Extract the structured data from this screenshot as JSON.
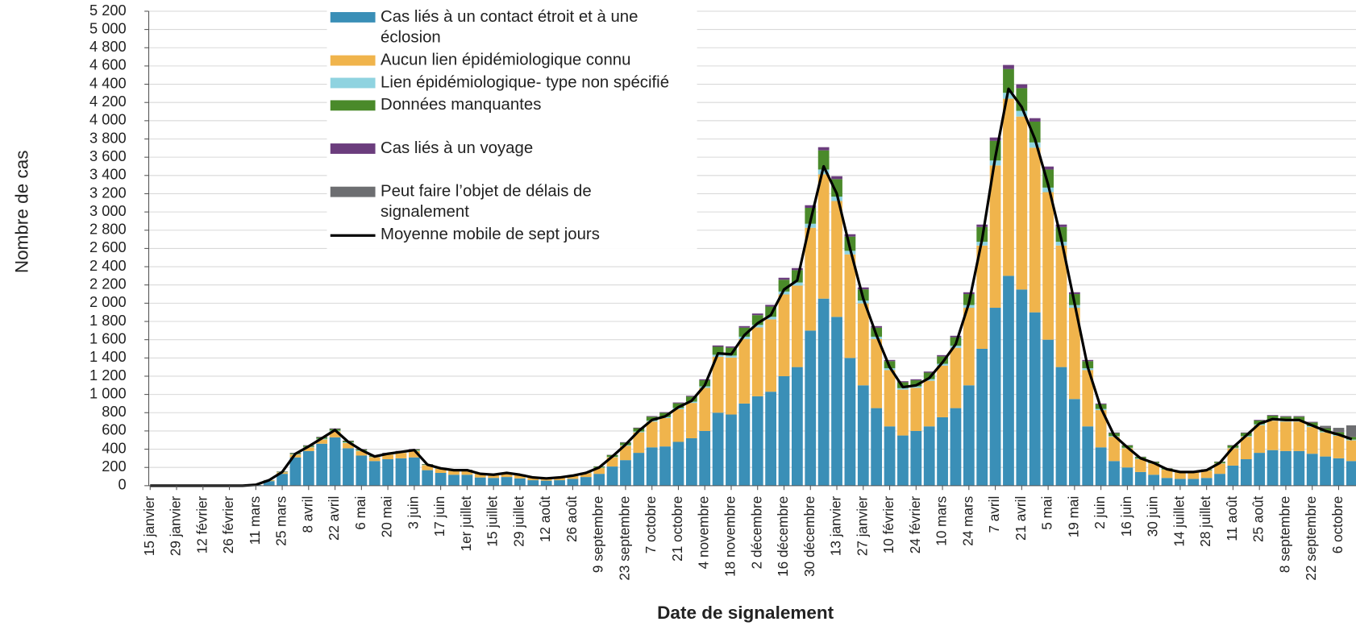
{
  "chart_data": {
    "type": "bar",
    "stacked": true,
    "x_label": "Date de signalement",
    "y_label": "Nombre de cas",
    "categories": [
      "15 janvier",
      null,
      "29 janvier",
      null,
      "12 février",
      null,
      "26 février",
      null,
      "11 mars",
      null,
      "25 mars",
      null,
      "8 avril",
      null,
      "22 avril",
      null,
      "6 mai",
      null,
      "20 mai",
      null,
      "3 juin",
      null,
      "17 juin",
      null,
      "1er juillet",
      null,
      "15 juillet",
      null,
      "29 juillet",
      null,
      "12 août",
      null,
      "26 août",
      null,
      "9 septembre",
      null,
      "23 septembre",
      null,
      "7 octobre",
      null,
      "21 octobre",
      null,
      "4 novembre",
      null,
      "18 novembre",
      null,
      "2 décembre",
      null,
      "16 décembre",
      null,
      "30 décembre",
      null,
      "13 janvier",
      null,
      "27 janvier",
      null,
      "10 février",
      null,
      "24 février",
      null,
      "10 mars",
      null,
      "24 mars",
      null,
      "7 avril",
      null,
      "21 avril",
      null,
      "5 mai",
      null,
      "19 mai",
      null,
      "2 juin",
      null,
      "16 juin",
      null,
      "30 juin",
      null,
      "14 juillet",
      null,
      "28 juillet",
      null,
      "11 août",
      null,
      "25 août",
      null,
      "8 septembre",
      null,
      "22 septembre",
      null,
      "6 octobre",
      null
    ],
    "series": [
      {
        "name": "Cas liés à un contact étroit et à une éclosion",
        "color": "#3a8fb7",
        "values": [
          0,
          0,
          0,
          0,
          0,
          0,
          0,
          0,
          8,
          50,
          130,
          310,
          380,
          460,
          530,
          410,
          330,
          270,
          290,
          300,
          310,
          170,
          140,
          120,
          120,
          90,
          85,
          95,
          80,
          60,
          55,
          60,
          75,
          95,
          130,
          210,
          280,
          360,
          420,
          430,
          480,
          520,
          600,
          800,
          780,
          900,
          980,
          1030,
          1200,
          1300,
          1700,
          2050,
          1850,
          1400,
          1100,
          850,
          650,
          550,
          600,
          650,
          750,
          850,
          1100,
          1500,
          1950,
          2300,
          2150,
          1900,
          1600,
          1300,
          950,
          650,
          420,
          270,
          200,
          150,
          120,
          85,
          75,
          75,
          85,
          130,
          220,
          290,
          360,
          390,
          380,
          380,
          350,
          320,
          300,
          270
        ]
      },
      {
        "name": "Aucun lien épidémiologique connu",
        "color": "#f0b44c",
        "values": [
          0,
          0,
          0,
          0,
          0,
          0,
          0,
          0,
          2,
          8,
          16,
          31,
          40,
          47,
          65,
          58,
          50,
          42,
          51,
          60,
          70,
          55,
          45,
          45,
          45,
          37,
          32,
          42,
          37,
          28,
          23,
          28,
          32,
          42,
          65,
          102,
          158,
          225,
          282,
          311,
          358,
          387,
          472,
          613,
          624,
          708,
          755,
          793,
          896,
          893,
          1127,
          1362,
          1270,
          1135,
          898,
          758,
          617,
          503,
          472,
          500,
          566,
          661,
          850,
          1132,
          1560,
          1941,
          1896,
          1805,
          1617,
          1332,
          1000,
          617,
          408,
          266,
          210,
          142,
          123,
          90,
          71,
          71,
          80,
          113,
          190,
          246,
          303,
          322,
          322,
          322,
          293,
          265,
          246,
          227
        ]
      },
      {
        "name": "Lien épidémiologique- type non spécifié",
        "color": "#8fd3e0",
        "values": [
          0,
          0,
          0,
          0,
          0,
          0,
          0,
          0,
          0,
          1,
          2,
          5,
          6,
          8,
          9,
          7,
          6,
          5,
          5,
          6,
          6,
          3,
          3,
          3,
          3,
          2,
          2,
          2,
          2,
          1,
          1,
          1,
          2,
          2,
          3,
          5,
          7,
          9,
          11,
          11,
          13,
          14,
          17,
          22,
          22,
          25,
          27,
          28,
          32,
          34,
          44,
          53,
          48,
          39,
          31,
          25,
          20,
          16,
          17,
          18,
          20,
          23,
          30,
          41,
          54,
          65,
          62,
          57,
          50,
          41,
          30,
          20,
          13,
          8,
          6,
          5,
          4,
          3,
          2,
          2,
          3,
          4,
          6,
          8,
          10,
          11,
          11,
          11,
          10,
          9,
          8,
          8
        ]
      },
      {
        "name": "Données manquantes",
        "color": "#4a8a2a",
        "values": [
          0,
          0,
          0,
          0,
          0,
          0,
          0,
          0,
          0,
          2,
          5,
          10,
          13,
          16,
          18,
          14,
          12,
          10,
          11,
          11,
          12,
          7,
          6,
          5,
          5,
          4,
          4,
          4,
          4,
          3,
          2,
          3,
          3,
          4,
          12,
          19,
          27,
          36,
          43,
          46,
          52,
          56,
          66,
          87,
          86,
          99,
          107,
          112,
          129,
          135,
          174,
          210,
          192,
          156,
          123,
          99,
          78,
          65,
          66,
          71,
          81,
          93,
          120,
          162,
          216,
          261,
          249,
          228,
          198,
          162,
          120,
          78,
          51,
          33,
          25,
          18,
          15,
          11,
          9,
          9,
          10,
          15,
          25,
          33,
          41,
          44,
          43,
          43,
          40,
          36,
          34,
          31
        ]
      },
      {
        "name": "Cas liés à un voyage",
        "color": "#6b3d7d",
        "values": [
          0,
          0,
          0,
          0,
          0,
          0,
          0,
          0,
          0,
          1,
          2,
          4,
          4,
          5,
          6,
          5,
          4,
          3,
          4,
          4,
          4,
          2,
          2,
          2,
          2,
          1,
          1,
          1,
          1,
          1,
          1,
          1,
          1,
          1,
          2,
          3,
          5,
          6,
          7,
          8,
          9,
          9,
          11,
          15,
          14,
          17,
          18,
          19,
          22,
          23,
          29,
          35,
          32,
          26,
          21,
          17,
          13,
          11,
          11,
          12,
          14,
          16,
          20,
          27,
          36,
          44,
          42,
          38,
          33,
          27,
          20,
          13,
          9,
          6,
          4,
          3,
          3,
          2,
          2,
          2,
          2,
          3,
          4,
          6,
          7,
          7,
          7,
          7,
          7,
          6,
          6,
          5
        ]
      },
      {
        "name": "Peut faire l’objet de délais de signalement",
        "color": "#6d6e71",
        "values": [
          0,
          0,
          0,
          0,
          0,
          0,
          0,
          0,
          0,
          0,
          0,
          0,
          0,
          0,
          0,
          0,
          0,
          0,
          0,
          0,
          0,
          0,
          0,
          0,
          0,
          0,
          0,
          0,
          0,
          0,
          0,
          0,
          0,
          0,
          0,
          0,
          0,
          0,
          0,
          0,
          0,
          0,
          0,
          0,
          0,
          0,
          0,
          0,
          0,
          0,
          0,
          0,
          0,
          0,
          0,
          0,
          0,
          0,
          0,
          0,
          0,
          0,
          0,
          0,
          0,
          0,
          0,
          0,
          0,
          0,
          0,
          0,
          0,
          0,
          0,
          0,
          0,
          0,
          0,
          0,
          0,
          0,
          0,
          0,
          0,
          0,
          0,
          0,
          0,
          20,
          40,
          120
        ]
      },
      {
        "name": "Moyenne mobile de sept jours",
        "color": "#000000",
        "type": "line",
        "values": [
          0,
          0,
          0,
          0,
          0,
          0,
          0,
          0,
          10,
          60,
          150,
          350,
          430,
          520,
          610,
          480,
          390,
          320,
          350,
          370,
          390,
          230,
          190,
          170,
          170,
          130,
          120,
          140,
          120,
          90,
          80,
          90,
          110,
          140,
          200,
          320,
          450,
          600,
          720,
          760,
          860,
          930,
          1100,
          1450,
          1440,
          1650,
          1780,
          1870,
          2150,
          2250,
          2900,
          3500,
          3200,
          2600,
          2050,
          1650,
          1300,
          1080,
          1100,
          1180,
          1350,
          1550,
          2000,
          2700,
          3600,
          4350,
          4150,
          3800,
          3300,
          2700,
          2000,
          1300,
          850,
          550,
          420,
          300,
          250,
          180,
          150,
          150,
          170,
          250,
          420,
          550,
          680,
          730,
          720,
          720,
          660,
          600,
          560,
          510
        ]
      }
    ],
    "ylim": [
      0,
      5200
    ],
    "yticks": [
      0,
      200,
      400,
      600,
      800,
      {
        "value": 1000,
        "label": "1 000"
      },
      {
        "value": 1200,
        "label": "1 200"
      },
      {
        "value": 1400,
        "label": "1 400"
      },
      {
        "value": 1600,
        "label": "1 600"
      },
      {
        "value": 1800,
        "label": "1 800"
      },
      {
        "value": 2000,
        "label": "2 000"
      },
      {
        "value": 2200,
        "label": "2 200"
      },
      {
        "value": 2400,
        "label": "2 400"
      },
      {
        "value": 2600,
        "label": "2 600"
      },
      {
        "value": 2800,
        "label": "2 800"
      },
      {
        "value": 3000,
        "label": "3 000"
      },
      {
        "value": 3200,
        "label": "3 200"
      },
      {
        "value": 3400,
        "label": "3 400"
      },
      {
        "value": 3600,
        "label": "3 600"
      },
      {
        "value": 3800,
        "label": "3 800"
      },
      {
        "value": 4000,
        "label": "4 000"
      },
      {
        "value": 4200,
        "label": "4 200"
      },
      {
        "value": 4400,
        "label": "4 400"
      },
      {
        "value": 4600,
        "label": "4 600"
      },
      {
        "value": 4800,
        "label": "4 800"
      },
      {
        "value": 5000,
        "label": "5 000"
      },
      {
        "value": 5200,
        "label": "5 200"
      }
    ],
    "grid": true
  }
}
